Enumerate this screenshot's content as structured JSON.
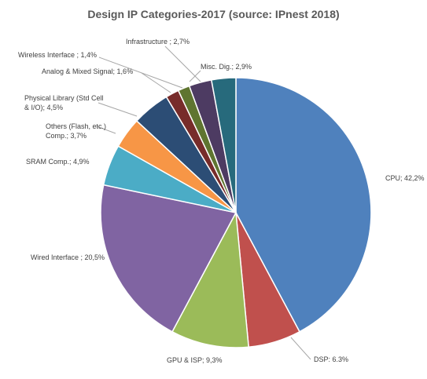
{
  "chart_data": {
    "type": "pie",
    "title": "Design IP Categories-2017 (source: IPnest 2018)",
    "slices": [
      {
        "label_lines": [
          "CPU; 42,2%"
        ],
        "value": 42.2,
        "color": "#4F81BD"
      },
      {
        "label_lines": [
          "DSP:  6.3%"
        ],
        "value": 6.3,
        "color": "#C0504D"
      },
      {
        "label_lines": [
          "GPU & ISP; 9,3%"
        ],
        "value": 9.3,
        "color": "#9BBB59"
      },
      {
        "label_lines": [
          "Wired Interface ; 20,5%"
        ],
        "value": 20.5,
        "color": "#8064A2"
      },
      {
        "label_lines": [
          "SRAM Comp.; 4,9%"
        ],
        "value": 4.9,
        "color": "#4BACC6"
      },
      {
        "label_lines": [
          "Others  (Flash, etc.)",
          "Comp.; 3,7%"
        ],
        "value": 3.7,
        "color": "#F79646"
      },
      {
        "label_lines": [
          "Physical Library (Std Cell",
          "& I/O); 4,5%"
        ],
        "value": 4.5,
        "color": "#2C4D75"
      },
      {
        "label_lines": [
          "Analog & Mixed Signal; 1,6%"
        ],
        "value": 1.6,
        "color": "#772C2A"
      },
      {
        "label_lines": [
          "Wireless Interface ; 1,4%"
        ],
        "value": 1.4,
        "color": "#5F7530"
      },
      {
        "label_lines": [
          "Infrastructure ; 2,7%"
        ],
        "value": 2.7,
        "color": "#4D3B62"
      },
      {
        "label_lines": [
          "Misc. Dig.; 2,9%"
        ],
        "value": 2.9,
        "color": "#276A7C"
      }
    ],
    "legend": "none"
  }
}
